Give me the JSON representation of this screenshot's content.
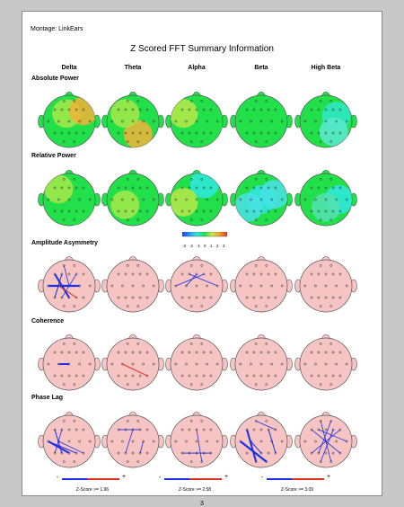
{
  "report": {
    "montage": "Montage:  LinkEars",
    "title": "Z Scored FFT Summary Information",
    "page_number": "3"
  },
  "bands": [
    "Delta",
    "Theta",
    "Alpha",
    "Beta",
    "High Beta"
  ],
  "rows": [
    {
      "label": "Absolute Power",
      "kind": "map"
    },
    {
      "label": "Relative Power",
      "kind": "map"
    },
    {
      "label": "Amplitude Asymmetry",
      "kind": "connect"
    },
    {
      "label": "Coherence",
      "kind": "connect"
    },
    {
      "label": "Phase Lag",
      "kind": "connect"
    }
  ],
  "colorbar": {
    "ticks": [
      "-3",
      "-2",
      "-1",
      "0",
      "1",
      "2",
      "3"
    ],
    "colors": [
      "#1e3cff",
      "#2a9df4",
      "#2ee8e0",
      "#22e04a",
      "#cde84a",
      "#f3a124",
      "#e83a2a"
    ]
  },
  "legends": [
    {
      "minus": "-",
      "plus": "+",
      "text": "Z-Score >= 1.96"
    },
    {
      "minus": "-",
      "plus": "+",
      "text": "Z-Score >= 2.58"
    },
    {
      "minus": "-",
      "plus": "+",
      "text": "Z-Score >= 3.09"
    }
  ],
  "colors": {
    "map_base": "#22e04a",
    "connect_base": "#f7c4c4",
    "decrease": "#1a2fe6",
    "increase": "#e0301e"
  }
}
